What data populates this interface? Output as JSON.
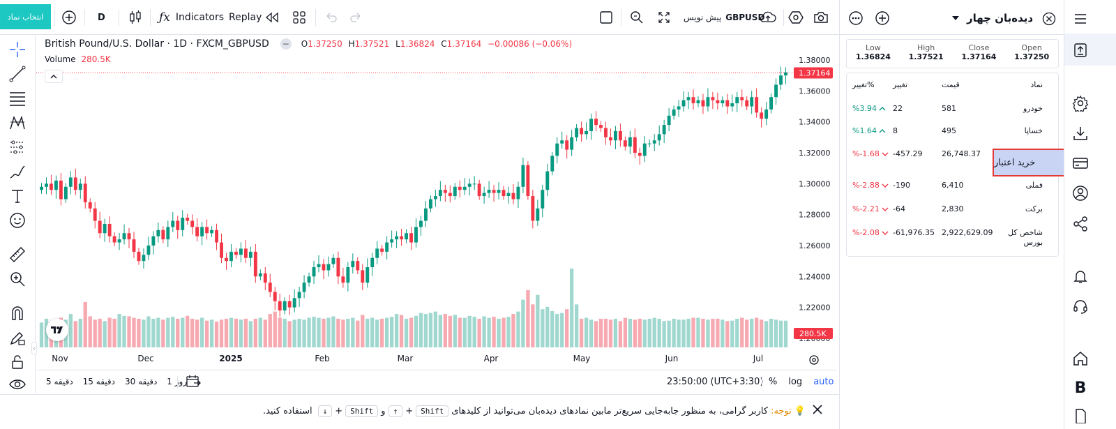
{
  "topbar": {
    "symbol_select_label": "انتخاب نماد",
    "interval": "D",
    "indicators_label": "Indicators",
    "replay_label": "Replay",
    "symbol": "GBPUSD",
    "symbol_title": "پیش نویس"
  },
  "legend": {
    "title": "British Pound/U.S. Dollar · 1D · FXCM_GBPUSD",
    "o_key": "O",
    "o": "1.37250",
    "h_key": "H",
    "h": "1.37521",
    "l_key": "L",
    "l": "1.36824",
    "c_key": "C",
    "c": "1.37164",
    "change": "−0.00086 (−0.06%)",
    "volume_label": "Volume",
    "volume_value": "280.5K"
  },
  "chart_data": {
    "type": "candlestick",
    "symbol": "FXCM_GBPUSD",
    "interval": "1D",
    "y_ticks": [
      "1.38000",
      "1.36000",
      "1.34000",
      "1.32000",
      "1.30000",
      "1.28000",
      "1.26000",
      "1.24000",
      "1.22000",
      "1.20000"
    ],
    "ylim": [
      1.2,
      1.38
    ],
    "x_ticks": [
      "Nov",
      "Dec",
      "2025",
      "Feb",
      "Mar",
      "Apr",
      "May",
      "Jun",
      "Jul"
    ],
    "last_price": "1.37164",
    "last_volume": "280.5K",
    "colors": {
      "up": "#089981",
      "down": "#f23645",
      "vol_up": "#a0d8cf",
      "vol_down": "#f7a9b1"
    },
    "closes": [
      1.298,
      1.3,
      1.296,
      1.302,
      1.29,
      1.298,
      1.304,
      1.296,
      1.3,
      1.288,
      1.284,
      1.276,
      1.268,
      1.274,
      1.266,
      1.262,
      1.264,
      1.268,
      1.264,
      1.256,
      1.25,
      1.254,
      1.26,
      1.266,
      1.27,
      1.264,
      1.272,
      1.276,
      1.27,
      1.278,
      1.276,
      1.272,
      1.266,
      1.272,
      1.268,
      1.27,
      1.262,
      1.252,
      1.25,
      1.256,
      1.254,
      1.258,
      1.252,
      1.256,
      1.24,
      1.242,
      1.236,
      1.23,
      1.224,
      1.218,
      1.224,
      1.22,
      1.226,
      1.23,
      1.236,
      1.24,
      1.246,
      1.248,
      1.244,
      1.248,
      1.252,
      1.24,
      1.236,
      1.246,
      1.25,
      1.244,
      1.236,
      1.246,
      1.252,
      1.258,
      1.256,
      1.262,
      1.264,
      1.266,
      1.264,
      1.268,
      1.262,
      1.272,
      1.276,
      1.284,
      1.29,
      1.292,
      1.296,
      1.294,
      1.292,
      1.298,
      1.296,
      1.298,
      1.3,
      1.3,
      1.292,
      1.294,
      1.296,
      1.294,
      1.296,
      1.292,
      1.294,
      1.29,
      1.298,
      1.312,
      1.292,
      1.276,
      1.284,
      1.296,
      1.308,
      1.318,
      1.326,
      1.328,
      1.322,
      1.33,
      1.336,
      1.332,
      1.334,
      1.342,
      1.338,
      1.336,
      1.33,
      1.328,
      1.334,
      1.328,
      1.324,
      1.33,
      1.32,
      1.318,
      1.326,
      1.326,
      1.328,
      1.332,
      1.338,
      1.344,
      1.348,
      1.35,
      1.354,
      1.356,
      1.352,
      1.354,
      1.35,
      1.356,
      1.354,
      1.352,
      1.354,
      1.35,
      1.352,
      1.356,
      1.354,
      1.35,
      1.356,
      1.346,
      1.342,
      1.348,
      1.356,
      1.364,
      1.37,
      1.372
    ],
    "volumes": [
      0.52,
      0.6,
      0.55,
      0.48,
      0.62,
      0.58,
      0.7,
      0.55,
      0.6,
      0.95,
      0.65,
      0.58,
      0.6,
      0.55,
      0.62,
      0.6,
      0.7,
      0.66,
      0.65,
      0.62,
      0.6,
      0.58,
      0.65,
      0.6,
      0.62,
      0.58,
      0.62,
      0.64,
      0.6,
      0.62,
      0.66,
      0.6,
      0.58,
      0.62,
      0.56,
      0.58,
      0.54,
      0.58,
      0.6,
      0.62,
      0.6,
      0.58,
      0.6,
      0.55,
      0.6,
      0.62,
      0.58,
      0.7,
      0.75,
      0.62,
      0.6,
      0.55,
      0.58,
      0.6,
      0.58,
      0.62,
      0.64,
      0.62,
      0.6,
      0.62,
      0.65,
      0.6,
      0.58,
      0.6,
      0.62,
      0.56,
      0.68,
      0.6,
      0.62,
      0.58,
      0.6,
      0.62,
      0.64,
      0.7,
      0.68,
      0.6,
      0.62,
      0.66,
      0.72,
      0.7,
      0.72,
      0.75,
      0.68,
      0.7,
      0.66,
      0.68,
      0.62,
      0.62,
      0.66,
      0.64,
      0.6,
      0.65,
      0.62,
      0.64,
      0.6,
      0.62,
      0.64,
      0.7,
      0.75,
      1.0,
      1.2,
      0.9,
      1.1,
      0.8,
      0.85,
      0.76,
      0.7,
      0.72,
      0.8,
      1.65,
      0.9,
      0.6,
      0.62,
      0.58,
      0.55,
      0.6,
      0.6,
      0.58,
      0.6,
      0.55,
      0.62,
      0.6,
      0.58,
      0.6,
      0.58,
      0.6,
      0.62,
      0.6,
      0.55,
      0.56,
      0.6,
      0.58,
      0.58,
      0.6,
      0.62,
      0.62,
      0.6,
      0.58,
      0.6,
      0.6,
      0.58,
      0.55,
      0.56,
      0.6,
      0.62,
      0.58,
      0.6,
      0.62,
      0.58,
      0.55,
      0.6,
      0.58,
      0.56,
      0.56
    ]
  },
  "bottombar": {
    "ranges": [
      "دقیقه 5",
      "دقیقه 15",
      "دقیقه 30",
      "روز 1"
    ],
    "time": "23:50:00 (UTC+3:30)",
    "percent": "%",
    "log": "log",
    "auto": "auto"
  },
  "notice": {
    "prefix": "توجه:",
    "text1": "کاربر گرامی، به منظور جابه‌جایی سریع‌تر مابین نمادهای دیده‌بان می‌توانید از کلیدهای",
    "key_shift": "Shift",
    "key_up": "↑",
    "and": "و",
    "key_down": "↓",
    "plus": "+",
    "text2": "استفاده کنید."
  },
  "watchlist": {
    "title": "دیده‌بان چهار",
    "summary": [
      {
        "label": "Low",
        "value": "1.36824"
      },
      {
        "label": "High",
        "value": "1.37521"
      },
      {
        "label": "Close",
        "value": "1.37164"
      },
      {
        "label": "Open",
        "value": "1.37250"
      }
    ],
    "columns": {
      "symbol": "نماد",
      "price": "قیمت",
      "change": "تغییر",
      "change_pct": "تغییر%"
    },
    "rows": [
      {
        "symbol": "خودرو",
        "price": "581",
        "change": "22",
        "change_pct": "%3.94",
        "dir": "up"
      },
      {
        "symbol": "خساپا",
        "price": "495",
        "change": "8",
        "change_pct": "%1.64",
        "dir": "up"
      },
      {
        "symbol": "",
        "price": "26,748.37",
        "change": "-457.29",
        "change_pct": "%-1.68",
        "dir": "down"
      },
      {
        "symbol": "فملی",
        "price": "6,410",
        "change": "-190",
        "change_pct": "%-2.88",
        "dir": "down"
      },
      {
        "symbol": "برکت",
        "price": "2,830",
        "change": "-64",
        "change_pct": "%-2.21",
        "dir": "down"
      },
      {
        "symbol": "شاخص کل بورس",
        "price": "2,922,629.09",
        "change": "-61,976.35",
        "change_pct": "%-2.08",
        "dir": "down"
      }
    ],
    "buy_credit_label": "خرید اعتبار"
  },
  "colors": {
    "accent": "#2962ff",
    "brand": "#1ec8c2",
    "up": "#089981",
    "down": "#f23645",
    "highlight_box": "#e53935",
    "tooltip_bg": "#c9d4f5"
  }
}
